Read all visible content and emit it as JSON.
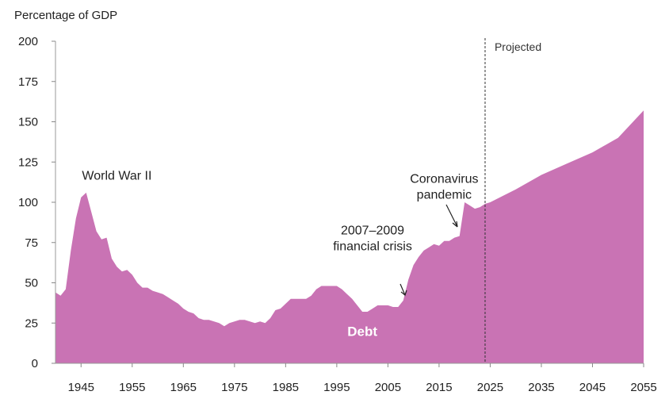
{
  "chart_data": {
    "type": "area",
    "ylabel": "Percentage of GDP",
    "ylim": [
      0,
      200
    ],
    "yticks": [
      0,
      25,
      50,
      75,
      100,
      125,
      150,
      175,
      200
    ],
    "xlim": [
      1940,
      2055
    ],
    "xticks": [
      1945,
      1955,
      1965,
      1975,
      1985,
      1995,
      2005,
      2015,
      2025,
      2035,
      2045,
      2055
    ],
    "projection_start": 2024,
    "projection_label": "Projected",
    "series": [
      {
        "name": "Debt",
        "color": "#c973b4",
        "x": [
          1940,
          1941,
          1942,
          1943,
          1944,
          1945,
          1946,
          1947,
          1948,
          1949,
          1950,
          1951,
          1952,
          1953,
          1954,
          1955,
          1956,
          1957,
          1958,
          1959,
          1960,
          1961,
          1962,
          1963,
          1964,
          1965,
          1966,
          1967,
          1968,
          1969,
          1970,
          1971,
          1972,
          1973,
          1974,
          1975,
          1976,
          1977,
          1978,
          1979,
          1980,
          1981,
          1982,
          1983,
          1984,
          1985,
          1986,
          1987,
          1988,
          1989,
          1990,
          1991,
          1992,
          1993,
          1994,
          1995,
          1996,
          1997,
          1998,
          1999,
          2000,
          2001,
          2002,
          2003,
          2004,
          2005,
          2006,
          2007,
          2008,
          2009,
          2010,
          2011,
          2012,
          2013,
          2014,
          2015,
          2016,
          2017,
          2018,
          2019,
          2020,
          2021,
          2022,
          2023,
          2024,
          2025,
          2030,
          2035,
          2040,
          2045,
          2050,
          2055
        ],
        "y": [
          44,
          42,
          46,
          70,
          90,
          103,
          106,
          94,
          82,
          77,
          78,
          65,
          60,
          57,
          58,
          55,
          50,
          47,
          47,
          45,
          44,
          43,
          41,
          39,
          37,
          34,
          32,
          31,
          28,
          27,
          27,
          26,
          25,
          23,
          25,
          26,
          27,
          27,
          26,
          25,
          26,
          25,
          28,
          33,
          34,
          37,
          40,
          40,
          40,
          40,
          42,
          46,
          48,
          48,
          48,
          48,
          46,
          43,
          40,
          36,
          32,
          32,
          34,
          36,
          36,
          36,
          35,
          35,
          39,
          52,
          61,
          66,
          70,
          72,
          74,
          73,
          76,
          76,
          78,
          79,
          100,
          98,
          96,
          97,
          99,
          100,
          108,
          117,
          124,
          131,
          140,
          157
        ]
      }
    ],
    "annotations": [
      {
        "lines": [
          "World War II"
        ],
        "x": 1952,
        "y": 114
      },
      {
        "lines": [
          "2007–2009",
          "financial crisis"
        ],
        "x": 2002,
        "y": 80
      },
      {
        "lines": [
          "Coronavirus",
          "pandemic"
        ],
        "x": 2016,
        "y": 112
      }
    ],
    "series_label": {
      "text": "Debt",
      "x": 2000,
      "y": 17
    }
  }
}
